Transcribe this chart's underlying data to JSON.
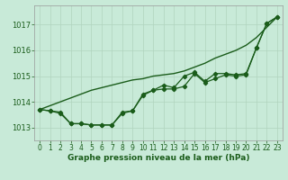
{
  "xlabel": "Graphe pression niveau de la mer (hPa)",
  "background_color": "#c8ead8",
  "grid_color": "#b0d4be",
  "line_color": "#1a5c1a",
  "x": [
    0,
    1,
    2,
    3,
    4,
    5,
    6,
    7,
    8,
    9,
    10,
    11,
    12,
    13,
    14,
    15,
    16,
    17,
    18,
    19,
    20,
    21,
    22,
    23
  ],
  "s_straight": [
    1013.7,
    1013.85,
    1014.0,
    1014.15,
    1014.3,
    1014.45,
    1014.55,
    1014.65,
    1014.75,
    1014.85,
    1014.9,
    1015.0,
    1015.05,
    1015.1,
    1015.2,
    1015.35,
    1015.5,
    1015.7,
    1015.85,
    1016.0,
    1016.2,
    1016.5,
    1016.9,
    1017.3
  ],
  "s_markers1": [
    1013.7,
    1013.65,
    1013.55,
    1013.15,
    1013.15,
    1013.1,
    1013.1,
    1013.1,
    1013.6,
    1013.65,
    1014.3,
    1014.45,
    1014.65,
    1014.55,
    1015.0,
    1015.15,
    1014.8,
    1015.1,
    1015.1,
    1015.05,
    1015.1,
    1016.1,
    1017.05,
    1017.3
  ],
  "s_markers2": [
    1013.7,
    1013.65,
    1013.6,
    1013.15,
    1013.15,
    1013.1,
    1013.1,
    1013.1,
    1013.55,
    1013.65,
    1014.25,
    1014.45,
    1014.5,
    1014.5,
    1014.6,
    1015.1,
    1014.75,
    1014.9,
    1015.05,
    1015.0,
    1015.05,
    1016.1,
    1017.05,
    1017.3
  ],
  "ylim": [
    1012.5,
    1017.75
  ],
  "yticks": [
    1013,
    1014,
    1015,
    1016,
    1017
  ],
  "xticks": [
    0,
    1,
    2,
    3,
    4,
    5,
    6,
    7,
    8,
    9,
    10,
    11,
    12,
    13,
    14,
    15,
    16,
    17,
    18,
    19,
    20,
    21,
    22,
    23
  ],
  "tick_fontsize": 5.5,
  "xlabel_fontsize": 6.5,
  "figsize": [
    3.2,
    2.0
  ],
  "dpi": 100
}
